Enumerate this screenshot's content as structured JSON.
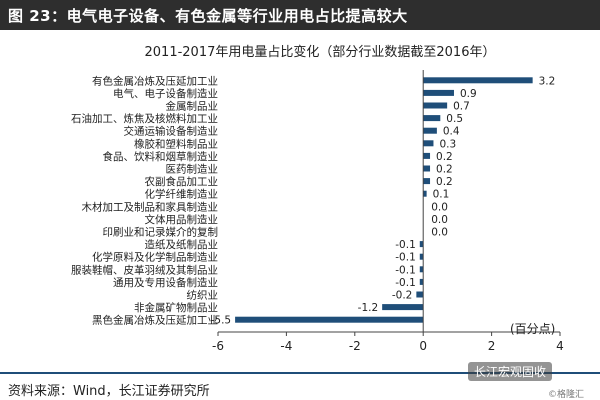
{
  "header": {
    "title": "图 23：电气电子设备、有色金属等行业用电占比提高较大"
  },
  "footer": {
    "source": "资料来源：Wind，长江证券研究所"
  },
  "watermark": {
    "main": "长江宏观固收",
    "small": "©格隆汇"
  },
  "colors": {
    "bar": "#1f4e79",
    "header_bg": "#2e2e2e"
  },
  "chart_data": {
    "type": "bar",
    "orientation": "horizontal",
    "title": "2011-2017年用电量占比变化（部分行业数据截至2016年）",
    "unit_label": "(百分点)",
    "xlim": [
      -6,
      4
    ],
    "xticks": [
      -6,
      -4,
      -2,
      0,
      2,
      4
    ],
    "grid": false,
    "categories": [
      "有色金属冶炼及压延加工业",
      "电气、电子设备制造业",
      "金属制品业",
      "石油加工、炼焦及核燃料加工业",
      "交通运输设备制造业",
      "橡胶和塑料制品业",
      "食品、饮料和烟草制造业",
      "医药制造业",
      "农副食品加工业",
      "化学纤维制造业",
      "木材加工及制品和家具制造业",
      "文体用品制造业",
      "印刷业和记录媒介的复制",
      "造纸及纸制品业",
      "化学原料及化学制品制造业",
      "服装鞋帽、皮革羽绒及其制品业",
      "通用及专用设备制造业",
      "纺织业",
      "非金属矿物制品业",
      "黑色金属冶炼及压延加工业"
    ],
    "values": [
      3.2,
      0.9,
      0.7,
      0.5,
      0.4,
      0.3,
      0.2,
      0.2,
      0.2,
      0.1,
      0.0,
      0.0,
      0.0,
      -0.1,
      -0.1,
      -0.1,
      -0.1,
      -0.2,
      -1.2,
      -5.5
    ],
    "value_labels": [
      "3.2",
      "0.9",
      "0.7",
      "0.5",
      "0.4",
      "0.3",
      "0.2",
      "0.2",
      "0.2",
      "0.1",
      "0.0",
      "0.0",
      "0.0",
      "-0.1",
      "-0.1",
      "-0.1",
      "-0.1",
      "-0.2",
      "-1.2",
      "-5.5"
    ]
  }
}
